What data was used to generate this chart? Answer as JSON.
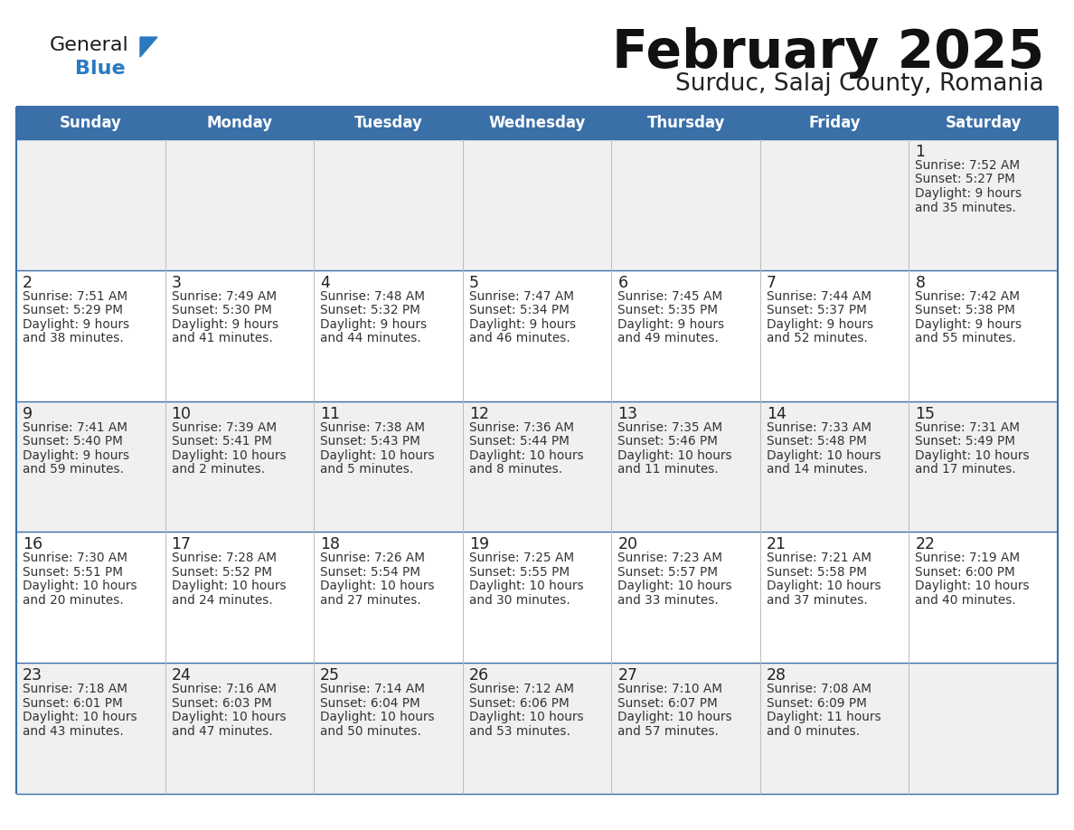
{
  "title": "February 2025",
  "subtitle": "Surduc, Salaj County, Romania",
  "header_bg": "#3a6fa8",
  "header_text": "#ffffff",
  "header_days": [
    "Sunday",
    "Monday",
    "Tuesday",
    "Wednesday",
    "Thursday",
    "Friday",
    "Saturday"
  ],
  "odd_row_bg": "#f0f0f0",
  "even_row_bg": "#ffffff",
  "cell_text_color": "#333333",
  "day_num_color": "#222222",
  "grid_line_color": "#3a6fa8",
  "logo_general_color": "#1a1a1a",
  "logo_blue_color": "#2a7abf",
  "days": [
    [
      null,
      null,
      null,
      null,
      null,
      null,
      {
        "d": 1,
        "rise": "7:52 AM",
        "set": "5:27 PM",
        "light": "9 hours and 35 minutes."
      }
    ],
    [
      {
        "d": 2,
        "rise": "7:51 AM",
        "set": "5:29 PM",
        "light": "9 hours and 38 minutes."
      },
      {
        "d": 3,
        "rise": "7:49 AM",
        "set": "5:30 PM",
        "light": "9 hours and 41 minutes."
      },
      {
        "d": 4,
        "rise": "7:48 AM",
        "set": "5:32 PM",
        "light": "9 hours and 44 minutes."
      },
      {
        "d": 5,
        "rise": "7:47 AM",
        "set": "5:34 PM",
        "light": "9 hours and 46 minutes."
      },
      {
        "d": 6,
        "rise": "7:45 AM",
        "set": "5:35 PM",
        "light": "9 hours and 49 minutes."
      },
      {
        "d": 7,
        "rise": "7:44 AM",
        "set": "5:37 PM",
        "light": "9 hours and 52 minutes."
      },
      {
        "d": 8,
        "rise": "7:42 AM",
        "set": "5:38 PM",
        "light": "9 hours and 55 minutes."
      }
    ],
    [
      {
        "d": 9,
        "rise": "7:41 AM",
        "set": "5:40 PM",
        "light": "9 hours and 59 minutes."
      },
      {
        "d": 10,
        "rise": "7:39 AM",
        "set": "5:41 PM",
        "light": "10 hours and 2 minutes."
      },
      {
        "d": 11,
        "rise": "7:38 AM",
        "set": "5:43 PM",
        "light": "10 hours and 5 minutes."
      },
      {
        "d": 12,
        "rise": "7:36 AM",
        "set": "5:44 PM",
        "light": "10 hours and 8 minutes."
      },
      {
        "d": 13,
        "rise": "7:35 AM",
        "set": "5:46 PM",
        "light": "10 hours and 11 minutes."
      },
      {
        "d": 14,
        "rise": "7:33 AM",
        "set": "5:48 PM",
        "light": "10 hours and 14 minutes."
      },
      {
        "d": 15,
        "rise": "7:31 AM",
        "set": "5:49 PM",
        "light": "10 hours and 17 minutes."
      }
    ],
    [
      {
        "d": 16,
        "rise": "7:30 AM",
        "set": "5:51 PM",
        "light": "10 hours and 20 minutes."
      },
      {
        "d": 17,
        "rise": "7:28 AM",
        "set": "5:52 PM",
        "light": "10 hours and 24 minutes."
      },
      {
        "d": 18,
        "rise": "7:26 AM",
        "set": "5:54 PM",
        "light": "10 hours and 27 minutes."
      },
      {
        "d": 19,
        "rise": "7:25 AM",
        "set": "5:55 PM",
        "light": "10 hours and 30 minutes."
      },
      {
        "d": 20,
        "rise": "7:23 AM",
        "set": "5:57 PM",
        "light": "10 hours and 33 minutes."
      },
      {
        "d": 21,
        "rise": "7:21 AM",
        "set": "5:58 PM",
        "light": "10 hours and 37 minutes."
      },
      {
        "d": 22,
        "rise": "7:19 AM",
        "set": "6:00 PM",
        "light": "10 hours and 40 minutes."
      }
    ],
    [
      {
        "d": 23,
        "rise": "7:18 AM",
        "set": "6:01 PM",
        "light": "10 hours and 43 minutes."
      },
      {
        "d": 24,
        "rise": "7:16 AM",
        "set": "6:03 PM",
        "light": "10 hours and 47 minutes."
      },
      {
        "d": 25,
        "rise": "7:14 AM",
        "set": "6:04 PM",
        "light": "10 hours and 50 minutes."
      },
      {
        "d": 26,
        "rise": "7:12 AM",
        "set": "6:06 PM",
        "light": "10 hours and 53 minutes."
      },
      {
        "d": 27,
        "rise": "7:10 AM",
        "set": "6:07 PM",
        "light": "10 hours and 57 minutes."
      },
      {
        "d": 28,
        "rise": "7:08 AM",
        "set": "6:09 PM",
        "light": "11 hours and 0 minutes."
      },
      null
    ]
  ]
}
